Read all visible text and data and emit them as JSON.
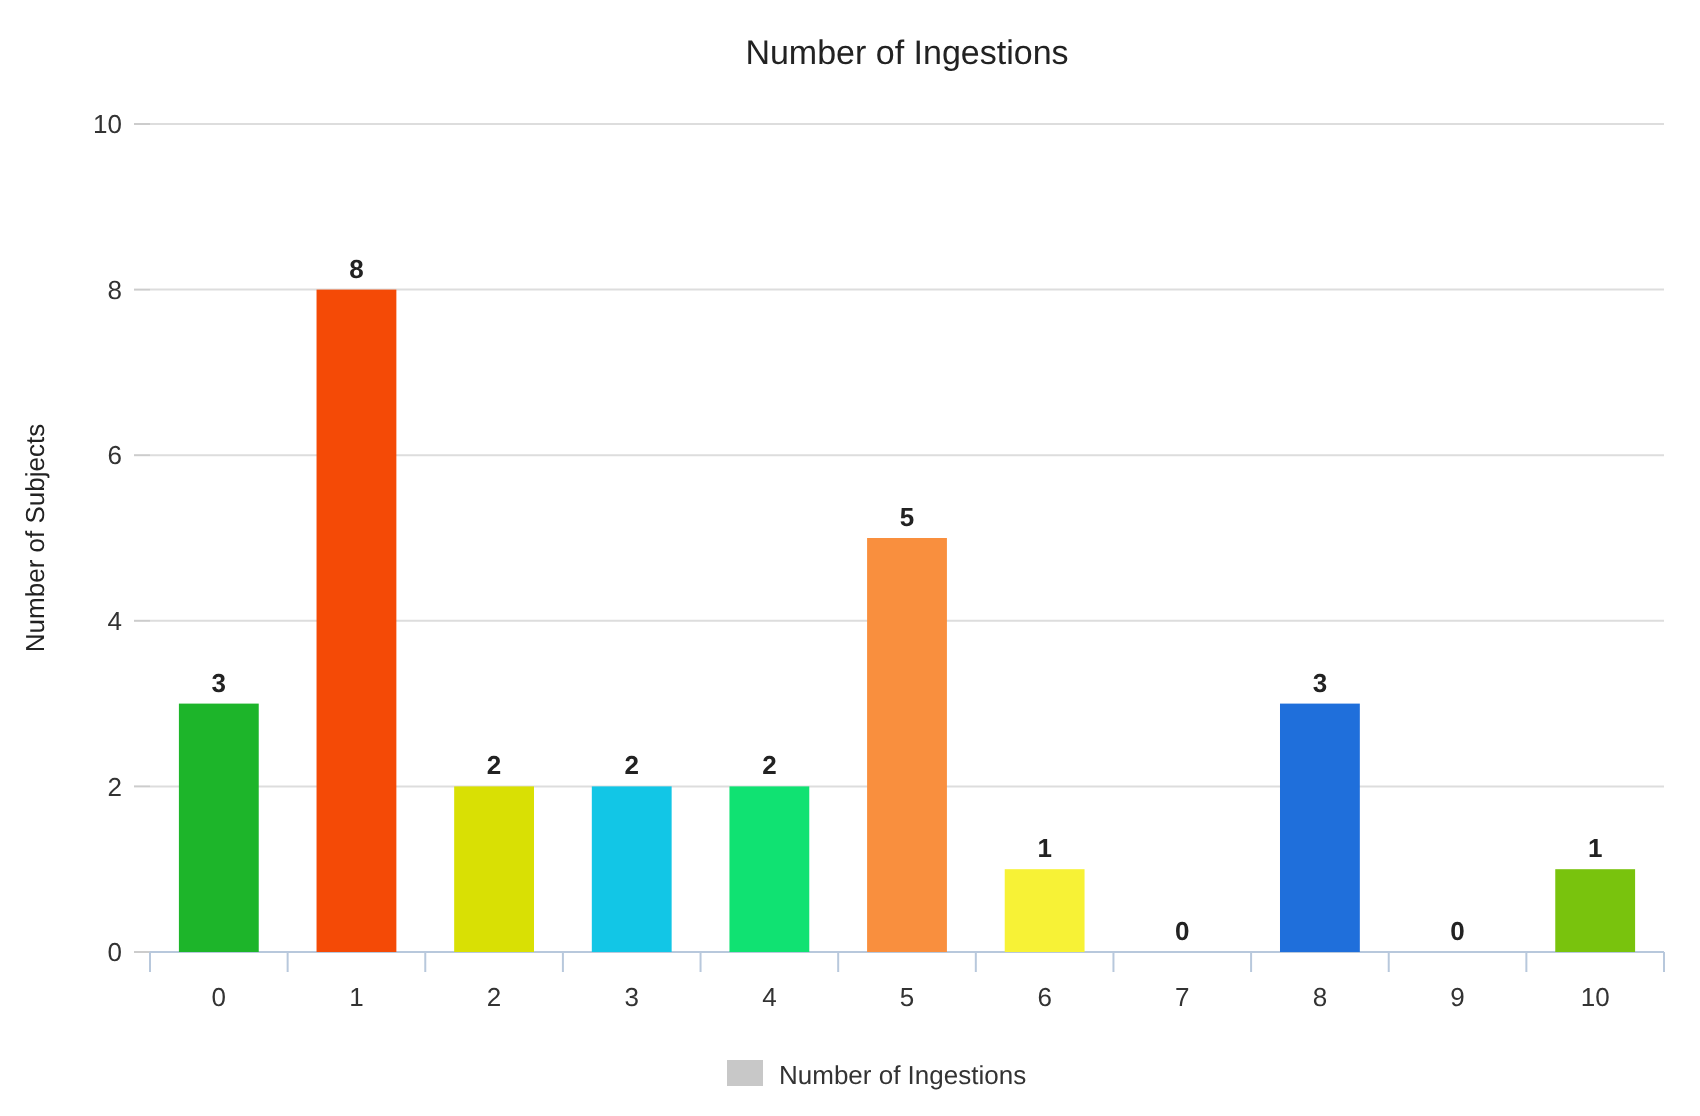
{
  "chart_data": {
    "type": "bar",
    "title": "Number of Ingestions",
    "ylabel": "Number of Subjects",
    "categories": [
      "0",
      "1",
      "2",
      "3",
      "4",
      "5",
      "6",
      "7",
      "8",
      "9",
      "10"
    ],
    "series": [
      {
        "name": "Number of Ingestions",
        "color": "#c8c8c8",
        "colors": [
          "#1db52a",
          "#f44a06",
          "#d9e004",
          "#12c6e6",
          "#10e272",
          "#f98f3e",
          "#f7f236",
          "#a855c8",
          "#1f6fdb",
          "#e23b7b",
          "#79c30d"
        ],
        "values": [
          3,
          8,
          2,
          2,
          2,
          5,
          1,
          0,
          3,
          0,
          1
        ]
      }
    ],
    "ylim": [
      0,
      10
    ],
    "yticks": [
      0,
      2,
      4,
      6,
      8,
      10
    ],
    "grid": "y",
    "data_labels": true,
    "legend": "bottom"
  }
}
